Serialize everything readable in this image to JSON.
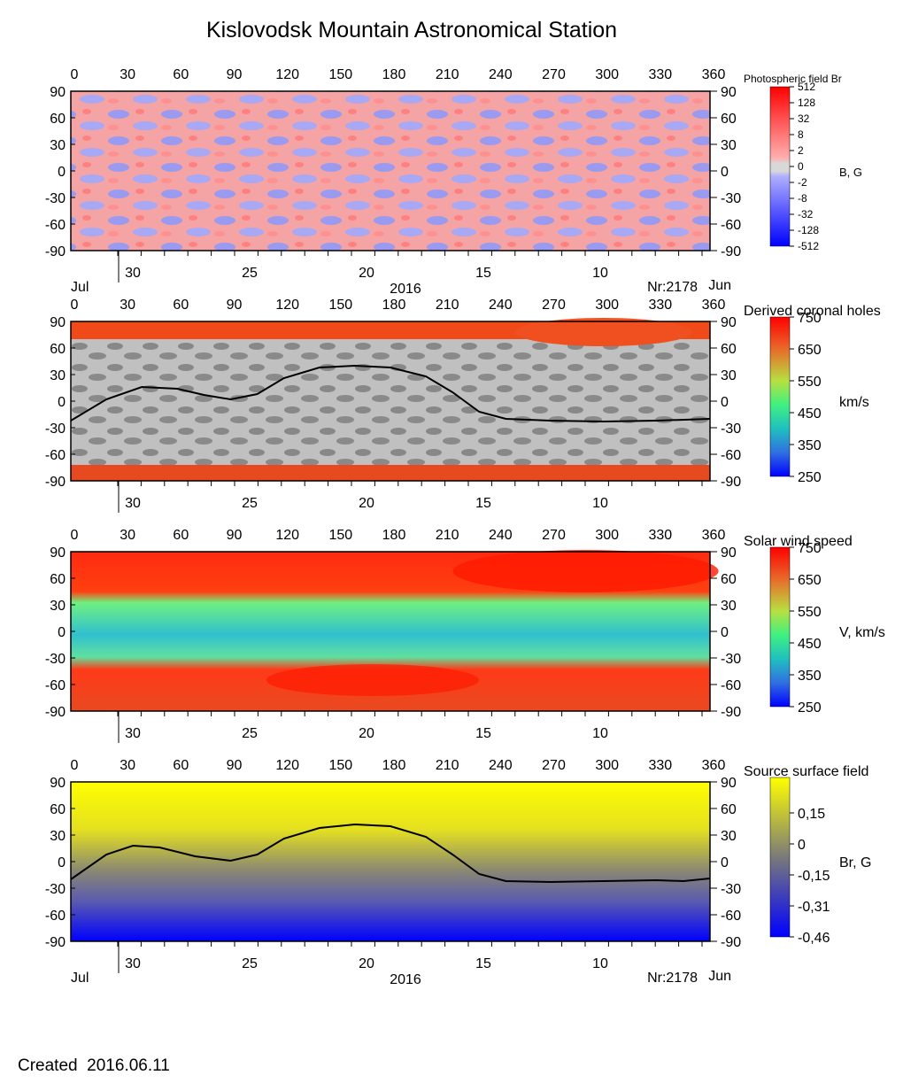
{
  "page": {
    "title": "Kislovodsk Mountain Astronomical Station",
    "created_label": "Created",
    "created_date": "2016.06.11"
  },
  "chart_data": [
    {
      "type": "heatmap",
      "title": "Photospheric field Br",
      "colorbar_label": "B, G",
      "colorbar_ticks": [
        "512",
        "128",
        "32",
        "8",
        "2",
        "0",
        "-2",
        "-8",
        "-32",
        "-128",
        "-512"
      ],
      "colorbar_scale": "log-symmetric",
      "colors": {
        "positive": "#ff0000",
        "near_zero": "#d8d8d8",
        "negative": "#0000ff"
      },
      "x_top": {
        "ticks": [
          0,
          30,
          60,
          90,
          120,
          150,
          180,
          210,
          240,
          270,
          300,
          330,
          360
        ],
        "range": [
          0,
          360
        ]
      },
      "y": {
        "ticks": [
          90,
          60,
          30,
          0,
          -30,
          -60,
          -90
        ],
        "range": [
          -90,
          90
        ]
      },
      "x_bottom": {
        "ticks": [
          "30",
          "25",
          "20",
          "15",
          "10"
        ]
      },
      "bottom_labels": {
        "left": "Jul",
        "center": "2016",
        "right_rotation": "Nr:2178",
        "right": "Jun"
      }
    },
    {
      "type": "heatmap",
      "title": "Derived coronal holes",
      "colorbar_label": "km/s",
      "colorbar_ticks": [
        "750",
        "650",
        "550",
        "450",
        "350",
        "250"
      ],
      "colorbar_range": [
        250,
        750
      ],
      "neutral_line": [
        [
          0,
          -22
        ],
        [
          20,
          2
        ],
        [
          40,
          16
        ],
        [
          60,
          14
        ],
        [
          75,
          7
        ],
        [
          90,
          2
        ],
        [
          105,
          8
        ],
        [
          120,
          26
        ],
        [
          140,
          38
        ],
        [
          160,
          40
        ],
        [
          180,
          38
        ],
        [
          200,
          28
        ],
        [
          215,
          10
        ],
        [
          230,
          -12
        ],
        [
          245,
          -20
        ],
        [
          270,
          -22
        ],
        [
          300,
          -23
        ],
        [
          330,
          -22
        ],
        [
          360,
          -20
        ]
      ],
      "x_top": {
        "ticks": [
          0,
          30,
          60,
          90,
          120,
          150,
          180,
          210,
          240,
          270,
          300,
          330,
          360
        ],
        "range": [
          0,
          360
        ]
      },
      "y": {
        "ticks": [
          90,
          60,
          30,
          0,
          -30,
          -60,
          -90
        ],
        "range": [
          -90,
          90
        ]
      },
      "x_bottom": {
        "ticks": [
          "30",
          "25",
          "20",
          "15",
          "10"
        ]
      }
    },
    {
      "type": "heatmap",
      "title": "Solar wind speed",
      "colorbar_label": "V, km/s",
      "colorbar_ticks": [
        "750",
        "650",
        "550",
        "450",
        "350",
        "250"
      ],
      "colorbar_range": [
        250,
        750
      ],
      "x_top": {
        "ticks": [
          0,
          30,
          60,
          90,
          120,
          150,
          180,
          210,
          240,
          270,
          300,
          330,
          360
        ],
        "range": [
          0,
          360
        ]
      },
      "y": {
        "ticks": [
          90,
          60,
          30,
          0,
          -30,
          -60,
          -90
        ],
        "range": [
          -90,
          90
        ]
      },
      "x_bottom": {
        "ticks": [
          "30",
          "25",
          "20",
          "15",
          "10"
        ]
      }
    },
    {
      "type": "heatmap",
      "title": "Source surface field",
      "colorbar_label": "Br, G",
      "colorbar_ticks": [
        "0,15",
        "0",
        "-0,15",
        "-0,31",
        "-0,46"
      ],
      "colors": {
        "high": "#ffff00",
        "mid": "#7a7a8a",
        "low": "#0000ff"
      },
      "neutral_line": [
        [
          0,
          -20
        ],
        [
          20,
          8
        ],
        [
          35,
          18
        ],
        [
          50,
          16
        ],
        [
          70,
          6
        ],
        [
          90,
          1
        ],
        [
          105,
          8
        ],
        [
          120,
          26
        ],
        [
          140,
          38
        ],
        [
          160,
          42
        ],
        [
          180,
          40
        ],
        [
          200,
          28
        ],
        [
          215,
          8
        ],
        [
          230,
          -14
        ],
        [
          245,
          -22
        ],
        [
          270,
          -23
        ],
        [
          300,
          -22
        ],
        [
          330,
          -21
        ],
        [
          345,
          -22
        ],
        [
          360,
          -19
        ]
      ],
      "x_top": {
        "ticks": [
          0,
          30,
          60,
          90,
          120,
          150,
          180,
          210,
          240,
          270,
          300,
          330,
          360
        ],
        "range": [
          0,
          360
        ]
      },
      "y": {
        "ticks": [
          90,
          60,
          30,
          0,
          -30,
          -60,
          -90
        ],
        "range": [
          -90,
          90
        ]
      },
      "x_bottom": {
        "ticks": [
          "30",
          "25",
          "20",
          "15",
          "10"
        ]
      },
      "bottom_labels": {
        "left": "Jul",
        "center": "2016",
        "right_rotation": "Nr:2178",
        "right": "Jun"
      }
    }
  ]
}
